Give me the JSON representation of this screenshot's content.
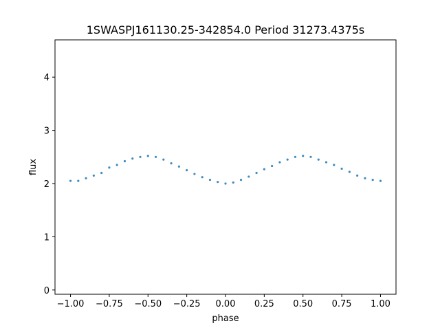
{
  "chart_data": {
    "type": "scatter",
    "title": "1SWASPJ161130.25-342854.0 Period 31273.4375s",
    "xlabel": "phase",
    "ylabel": "flux",
    "xlim": [
      -1.1,
      1.1
    ],
    "ylim": [
      -0.08,
      4.7
    ],
    "x_ticks": [
      -1.0,
      -0.75,
      -0.5,
      -0.25,
      0.0,
      0.25,
      0.5,
      0.75,
      1.0
    ],
    "x_tick_labels": [
      "−1.00",
      "−0.75",
      "−0.50",
      "−0.25",
      "0.00",
      "0.25",
      "0.50",
      "0.75",
      "1.00"
    ],
    "y_ticks": [
      0,
      1,
      2,
      3,
      4
    ],
    "y_tick_labels": [
      "0",
      "1",
      "2",
      "3",
      "4"
    ],
    "grid": false,
    "marker_color": "#1f77b4",
    "series": [
      {
        "x": [
          -1.0,
          -0.95,
          -0.9,
          -0.85,
          -0.8,
          -0.75,
          -0.7,
          -0.65,
          -0.6,
          -0.55,
          -0.5,
          -0.45,
          -0.4,
          -0.35,
          -0.3,
          -0.25,
          -0.2,
          -0.15,
          -0.1,
          -0.05,
          0.0,
          0.05,
          0.1,
          0.15,
          0.2,
          0.25,
          0.3,
          0.35,
          0.4,
          0.45,
          0.5,
          0.55,
          0.6,
          0.65,
          0.7,
          0.75,
          0.8,
          0.85,
          0.9,
          0.95,
          1.0
        ],
        "y": [
          2.05,
          2.05,
          2.1,
          2.15,
          2.2,
          2.3,
          2.35,
          2.42,
          2.47,
          2.5,
          2.52,
          2.5,
          2.45,
          2.38,
          2.32,
          2.25,
          2.18,
          2.12,
          2.07,
          2.03,
          2.0,
          2.02,
          2.07,
          2.13,
          2.2,
          2.27,
          2.33,
          2.4,
          2.45,
          2.5,
          2.52,
          2.5,
          2.45,
          2.4,
          2.35,
          2.28,
          2.22,
          2.15,
          2.1,
          2.07,
          2.05
        ]
      }
    ]
  }
}
